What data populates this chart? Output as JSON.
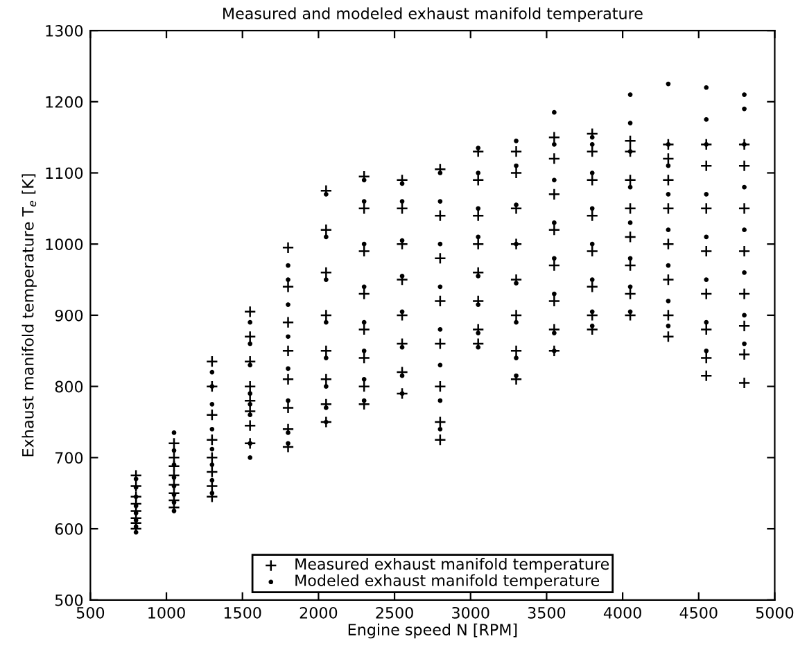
{
  "chart_data": {
    "type": "scatter",
    "title": "Measured and modeled exhaust manifold temperature",
    "xlabel": "Engine speed N [RPM]",
    "ylabel": "Exhaust manifold temperature T$_{e}$ [K]",
    "xlim": [
      500,
      5000
    ],
    "xticks": [
      500,
      1000,
      1500,
      2000,
      2500,
      3000,
      3500,
      4000,
      4500,
      5000
    ],
    "ylim": [
      500,
      1300
    ],
    "yticks": [
      500,
      600,
      700,
      800,
      900,
      1000,
      1100,
      1200,
      1300
    ],
    "grid": false,
    "legend": "bottom",
    "series": [
      {
        "name": "Measured exhaust manifold temperature",
        "color": "#000000",
        "marker": "cross",
        "x": [
          800,
          800,
          800,
          800,
          800,
          800,
          800,
          800,
          1050,
          1050,
          1050,
          1050,
          1050,
          1050,
          1050,
          1050,
          1300,
          1300,
          1300,
          1300,
          1300,
          1300,
          1300,
          1300,
          1550,
          1550,
          1550,
          1550,
          1550,
          1550,
          1550,
          1550,
          1800,
          1800,
          1800,
          1800,
          1800,
          1800,
          1800,
          1800,
          2050,
          2050,
          2050,
          2050,
          2050,
          2050,
          2050,
          2050,
          2300,
          2300,
          2300,
          2300,
          2300,
          2300,
          2300,
          2300,
          2550,
          2550,
          2550,
          2550,
          2550,
          2550,
          2550,
          2550,
          2800,
          2800,
          2800,
          2800,
          2800,
          2800,
          2800,
          2800,
          3050,
          3050,
          3050,
          3050,
          3050,
          3050,
          3050,
          3050,
          3300,
          3300,
          3300,
          3300,
          3300,
          3300,
          3300,
          3300,
          3550,
          3550,
          3550,
          3550,
          3550,
          3550,
          3550,
          3550,
          3800,
          3800,
          3800,
          3800,
          3800,
          3800,
          3800,
          3800,
          4050,
          4050,
          4050,
          4050,
          4050,
          4050,
          4050,
          4050,
          4300,
          4300,
          4300,
          4300,
          4300,
          4300,
          4300,
          4300,
          4550,
          4550,
          4550,
          4550,
          4550,
          4550,
          4550,
          4550,
          4800,
          4800,
          4800,
          4800,
          4800,
          4800,
          4800,
          4800
        ],
        "values": [
          600,
          608,
          615,
          625,
          635,
          645,
          660,
          675,
          630,
          640,
          650,
          662,
          675,
          688,
          700,
          720,
          645,
          660,
          680,
          700,
          725,
          760,
          800,
          835,
          720,
          745,
          765,
          780,
          800,
          835,
          870,
          905,
          715,
          740,
          770,
          810,
          850,
          890,
          940,
          995,
          750,
          775,
          810,
          850,
          900,
          960,
          1020,
          1075,
          775,
          800,
          840,
          880,
          930,
          990,
          1050,
          1095,
          790,
          820,
          860,
          900,
          950,
          1000,
          1050,
          1090,
          725,
          750,
          800,
          860,
          920,
          980,
          1040,
          1105,
          860,
          880,
          920,
          960,
          1000,
          1040,
          1090,
          1130,
          810,
          850,
          900,
          950,
          1000,
          1050,
          1100,
          1130,
          850,
          880,
          920,
          970,
          1020,
          1070,
          1120,
          1150,
          880,
          900,
          940,
          990,
          1040,
          1090,
          1130,
          1155,
          900,
          930,
          970,
          1010,
          1050,
          1090,
          1130,
          1145,
          870,
          900,
          950,
          1000,
          1050,
          1090,
          1120,
          1140,
          815,
          840,
          880,
          930,
          990,
          1050,
          1110,
          1140,
          805,
          845,
          885,
          930,
          990,
          1050,
          1110,
          1140
        ]
      },
      {
        "name": "Modeled exhaust manifold temperature",
        "color": "#000000",
        "marker": "circle",
        "x": [
          800,
          800,
          800,
          800,
          800,
          800,
          800,
          800,
          1050,
          1050,
          1050,
          1050,
          1050,
          1050,
          1050,
          1050,
          1300,
          1300,
          1300,
          1300,
          1300,
          1300,
          1300,
          1300,
          1550,
          1550,
          1550,
          1550,
          1550,
          1550,
          1550,
          1550,
          1800,
          1800,
          1800,
          1800,
          1800,
          1800,
          1800,
          1800,
          2050,
          2050,
          2050,
          2050,
          2050,
          2050,
          2050,
          2050,
          2300,
          2300,
          2300,
          2300,
          2300,
          2300,
          2300,
          2300,
          2550,
          2550,
          2550,
          2550,
          2550,
          2550,
          2550,
          2550,
          2800,
          2800,
          2800,
          2800,
          2800,
          2800,
          2800,
          2800,
          3050,
          3050,
          3050,
          3050,
          3050,
          3050,
          3050,
          3050,
          3300,
          3300,
          3300,
          3300,
          3300,
          3300,
          3300,
          3300,
          3550,
          3550,
          3550,
          3550,
          3550,
          3550,
          3550,
          3550,
          3800,
          3800,
          3800,
          3800,
          3800,
          3800,
          3800,
          3800,
          4050,
          4050,
          4050,
          4050,
          4050,
          4050,
          4050,
          4050,
          4300,
          4300,
          4300,
          4300,
          4300,
          4300,
          4300,
          4300,
          4550,
          4550,
          4550,
          4550,
          4550,
          4550,
          4550,
          4550,
          4800,
          4800,
          4800,
          4800,
          4800,
          4800,
          4800,
          4800
        ],
        "values": [
          595,
          603,
          612,
          622,
          632,
          645,
          658,
          670,
          625,
          637,
          648,
          660,
          672,
          690,
          710,
          735,
          650,
          668,
          690,
          712,
          740,
          775,
          800,
          820,
          700,
          720,
          760,
          775,
          790,
          830,
          860,
          890,
          720,
          735,
          780,
          825,
          870,
          915,
          950,
          970,
          750,
          770,
          800,
          840,
          890,
          950,
          1010,
          1070,
          780,
          810,
          850,
          890,
          940,
          1000,
          1060,
          1090,
          790,
          815,
          855,
          905,
          955,
          1005,
          1060,
          1085,
          740,
          780,
          830,
          880,
          940,
          1000,
          1060,
          1100,
          855,
          875,
          915,
          955,
          1010,
          1050,
          1100,
          1135,
          815,
          840,
          890,
          945,
          1000,
          1055,
          1110,
          1145,
          850,
          875,
          930,
          980,
          1030,
          1090,
          1140,
          1185,
          885,
          905,
          950,
          1000,
          1050,
          1100,
          1140,
          1150,
          905,
          940,
          980,
          1030,
          1080,
          1130,
          1170,
          1210,
          885,
          920,
          970,
          1020,
          1070,
          1110,
          1140,
          1225,
          850,
          890,
          950,
          1010,
          1070,
          1140,
          1175,
          1220,
          860,
          900,
          960,
          1020,
          1080,
          1140,
          1190,
          1210
        ]
      }
    ]
  }
}
